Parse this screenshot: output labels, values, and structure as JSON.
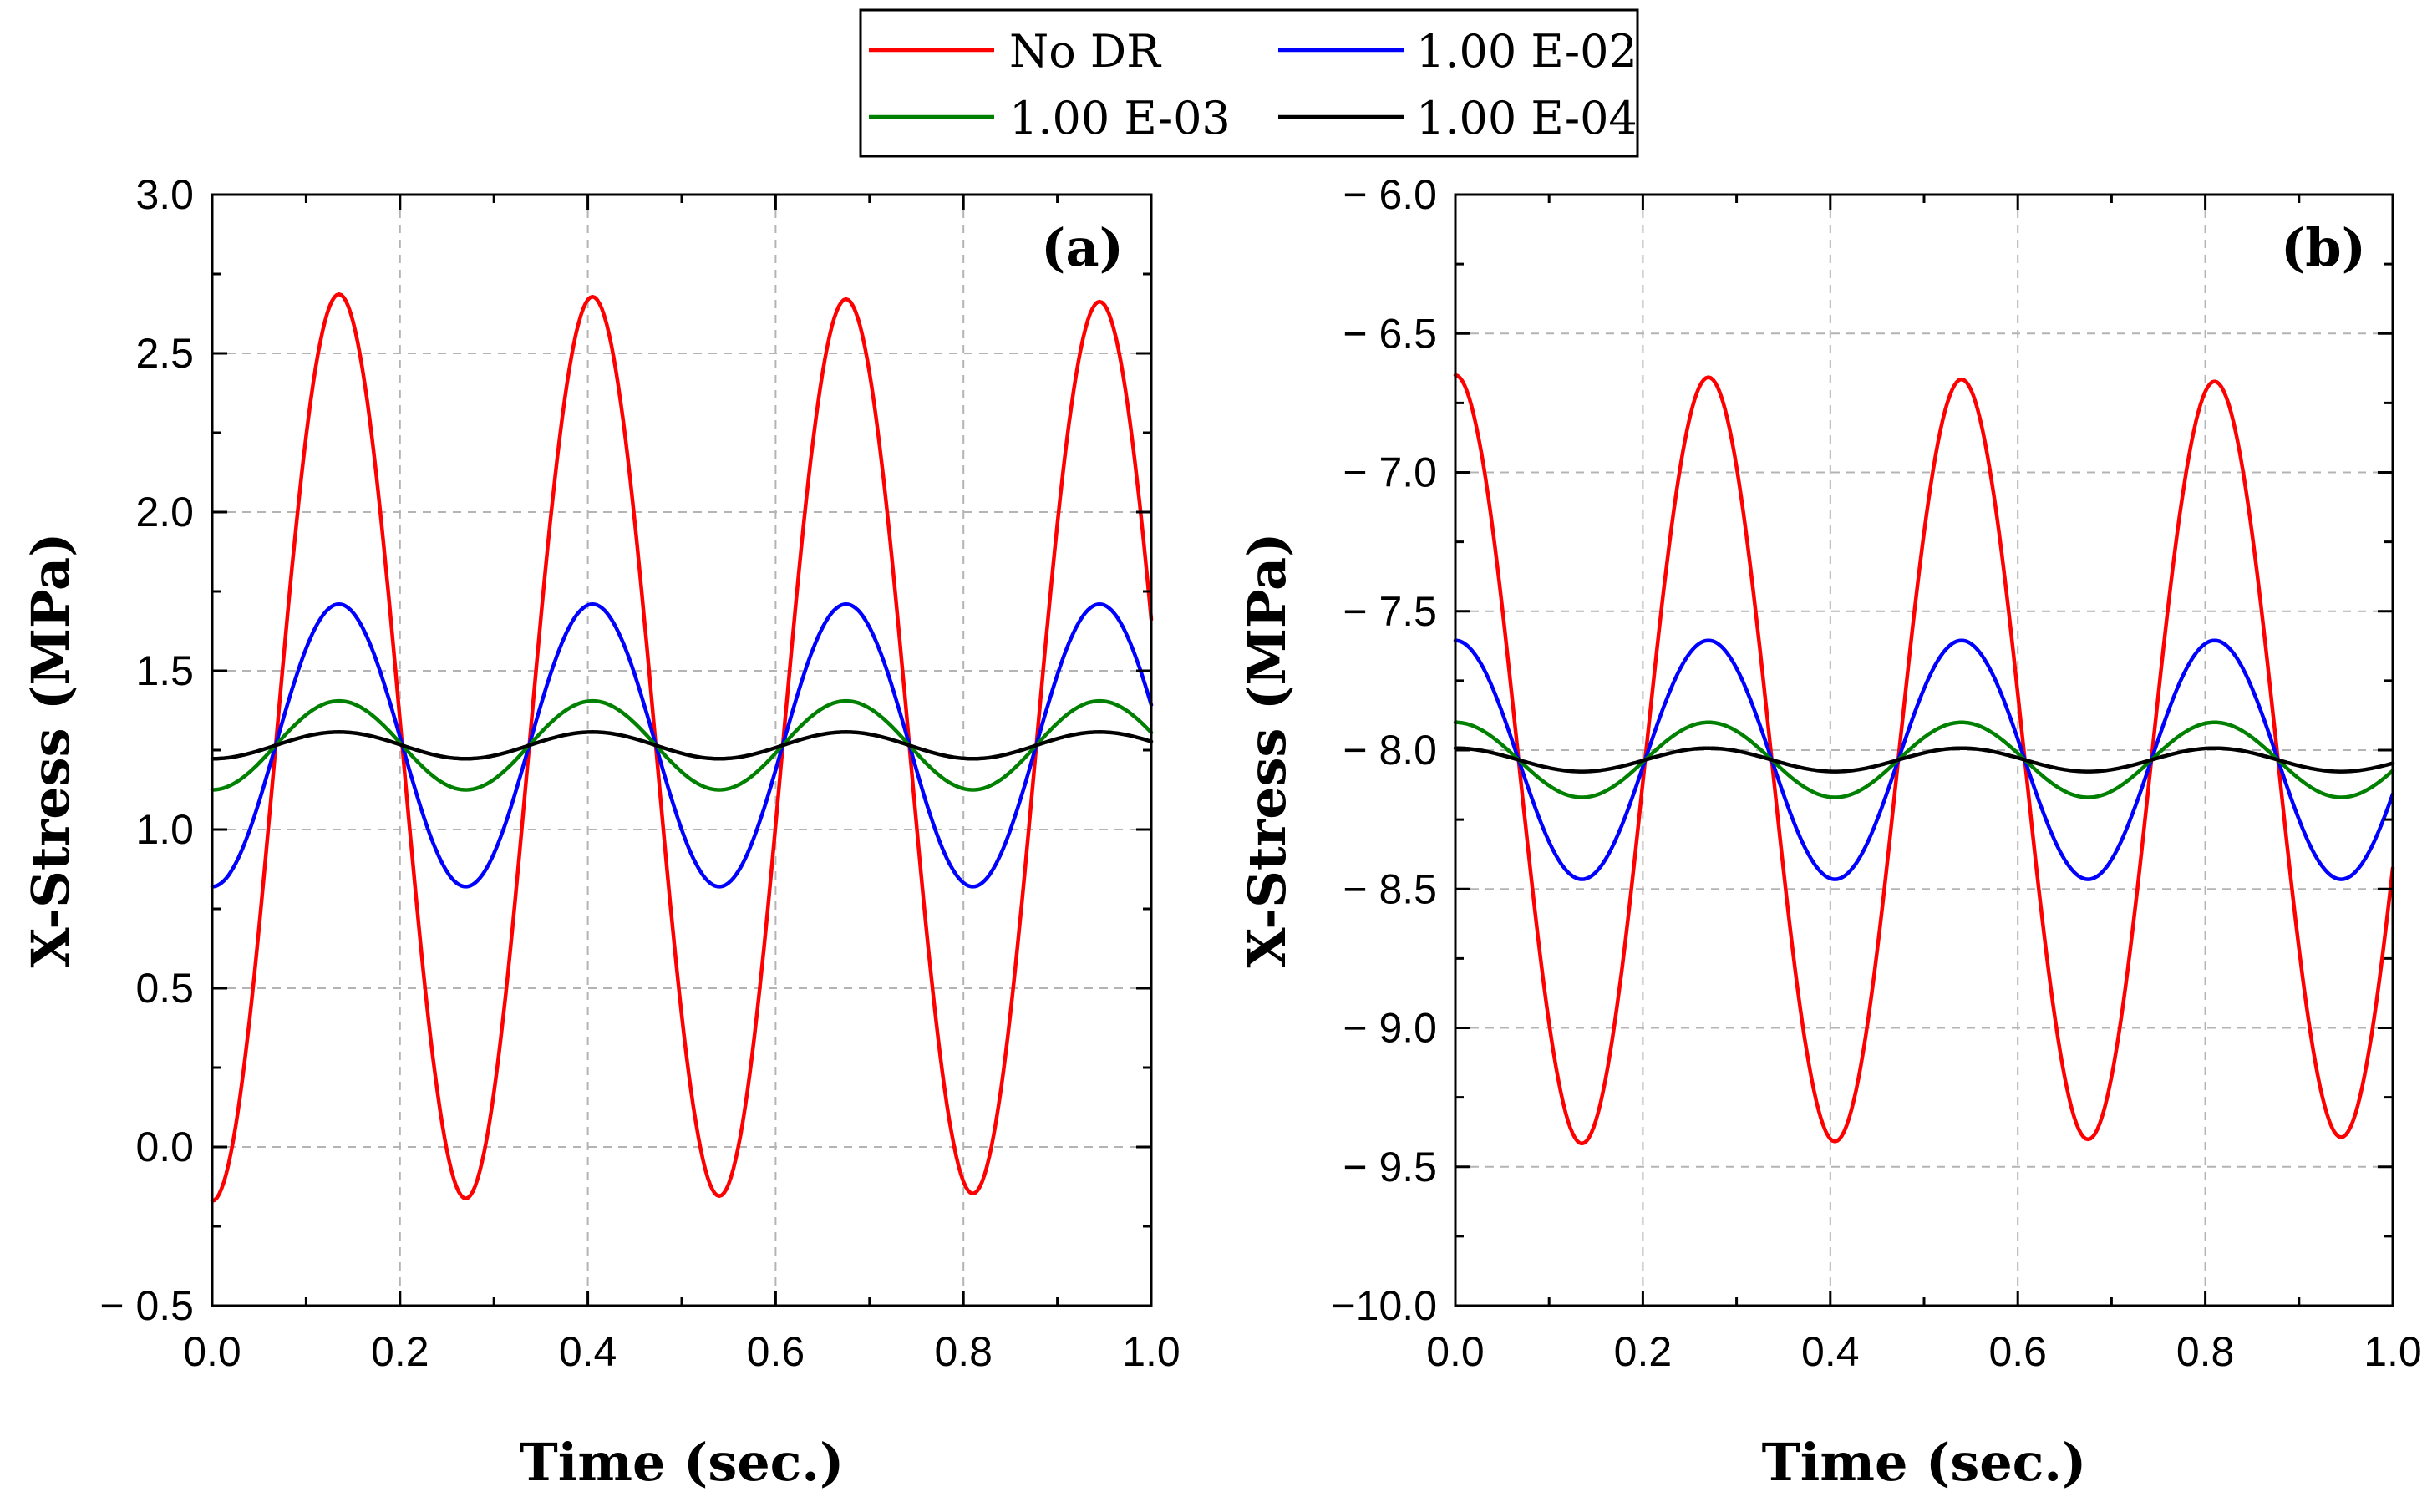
{
  "colors": {
    "no_dr": "#ff0000",
    "e02": "#0000ff",
    "e03": "#008000",
    "e04": "#000000"
  },
  "legend": {
    "items": [
      {
        "label": "No DR",
        "color": "#ff0000"
      },
      {
        "label": "1.00 E-02",
        "color": "#0000ff"
      },
      {
        "label": "1.00 E-03",
        "color": "#008000"
      },
      {
        "label": "1.00 E-04",
        "color": "#000000"
      }
    ]
  },
  "chart_data": [
    {
      "type": "line",
      "panel_label": "(a)",
      "xlabel": "Time (sec.)",
      "ylabel": "X-Stress (MPa)",
      "xlim": [
        0.0,
        1.0
      ],
      "ylim": [
        -0.5,
        3.0
      ],
      "xticks": [
        "0.0",
        "0.2",
        "0.4",
        "0.6",
        "0.8",
        "1.0"
      ],
      "yticks": [
        "3.0",
        "2.5",
        "2.0",
        "1.5",
        "1.0",
        "0.5",
        "0.0",
        "− 0.5"
      ],
      "ytick_values": [
        3.0,
        2.5,
        2.0,
        1.5,
        1.0,
        0.5,
        0.0,
        -0.5
      ],
      "grid": true,
      "period": 0.27,
      "series": [
        {
          "name": "No DR",
          "color": "#ff0000",
          "mean": 1.26,
          "amplitude": 1.43,
          "damping": 0.02,
          "phase_start": "min"
        },
        {
          "name": "1.00 E-02",
          "color": "#0000ff",
          "mean": 1.265,
          "amplitude": 0.445,
          "damping": 0.0,
          "phase_start": "min"
        },
        {
          "name": "1.00 E-03",
          "color": "#008000",
          "mean": 1.265,
          "amplitude": 0.14,
          "damping": 0.0,
          "phase_start": "min"
        },
        {
          "name": "1.00 E-04",
          "color": "#000000",
          "mean": 1.265,
          "amplitude": 0.042,
          "damping": 0.0,
          "phase_start": "min"
        }
      ]
    },
    {
      "type": "line",
      "panel_label": "(b)",
      "xlabel": "Time (sec.)",
      "ylabel": "X-Stress (MPa)",
      "xlim": [
        0.0,
        1.0
      ],
      "ylim": [
        -10.0,
        -6.0
      ],
      "xticks": [
        "0.0",
        "0.2",
        "0.4",
        "0.6",
        "0.8",
        "1.0"
      ],
      "yticks": [
        "− 6.0",
        "− 6.5",
        "− 7.0",
        "− 7.5",
        "− 8.0",
        "− 8.5",
        "− 9.0",
        "− 9.5",
        "−10.0"
      ],
      "ytick_values": [
        -6.0,
        -6.5,
        -7.0,
        -7.5,
        -8.0,
        -8.5,
        -9.0,
        -9.5,
        -10.0
      ],
      "grid": true,
      "period": 0.27,
      "series": [
        {
          "name": "No DR",
          "color": "#ff0000",
          "mean": -8.035,
          "amplitude": 1.385,
          "damping": 0.02,
          "phase_start": "max"
        },
        {
          "name": "1.00 E-02",
          "color": "#0000ff",
          "mean": -8.035,
          "amplitude": 0.43,
          "damping": 0.0,
          "phase_start": "max"
        },
        {
          "name": "1.00 E-03",
          "color": "#008000",
          "mean": -8.035,
          "amplitude": 0.135,
          "damping": 0.0,
          "phase_start": "max"
        },
        {
          "name": "1.00 E-04",
          "color": "#000000",
          "mean": -8.035,
          "amplitude": 0.042,
          "damping": 0.0,
          "phase_start": "max"
        }
      ]
    }
  ]
}
